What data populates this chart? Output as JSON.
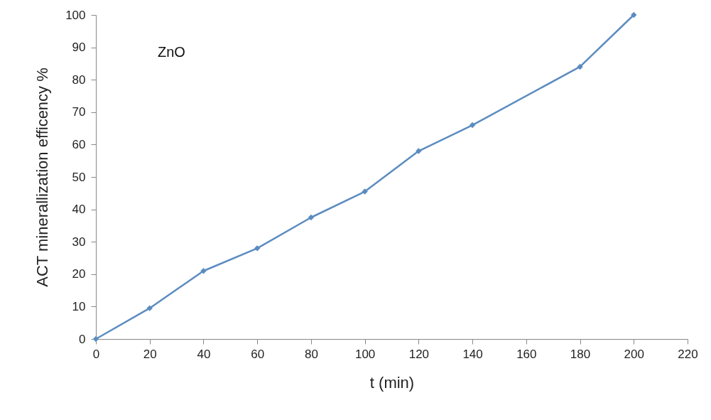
{
  "chart_data": {
    "type": "line",
    "xlabel": "t (min)",
    "ylabel": "ACT minerallization efficency %",
    "annotations": [
      "ZnO"
    ],
    "x": [
      0,
      20,
      40,
      60,
      80,
      100,
      120,
      140,
      180,
      200
    ],
    "series": [
      {
        "color": "#5b8cc0",
        "values": [
          0,
          9.5,
          21,
          28,
          37.5,
          45.5,
          58,
          66,
          84,
          100
        ]
      }
    ],
    "xlim": [
      0,
      220
    ],
    "xticks": [
      0,
      20,
      40,
      60,
      80,
      100,
      120,
      140,
      160,
      180,
      200,
      220
    ],
    "ylim": [
      0,
      100
    ],
    "yticks": [
      0,
      10,
      20,
      30,
      40,
      50,
      60,
      70,
      80,
      90,
      100
    ],
    "grid": false,
    "marker": "diamond",
    "line_style": "solid"
  }
}
